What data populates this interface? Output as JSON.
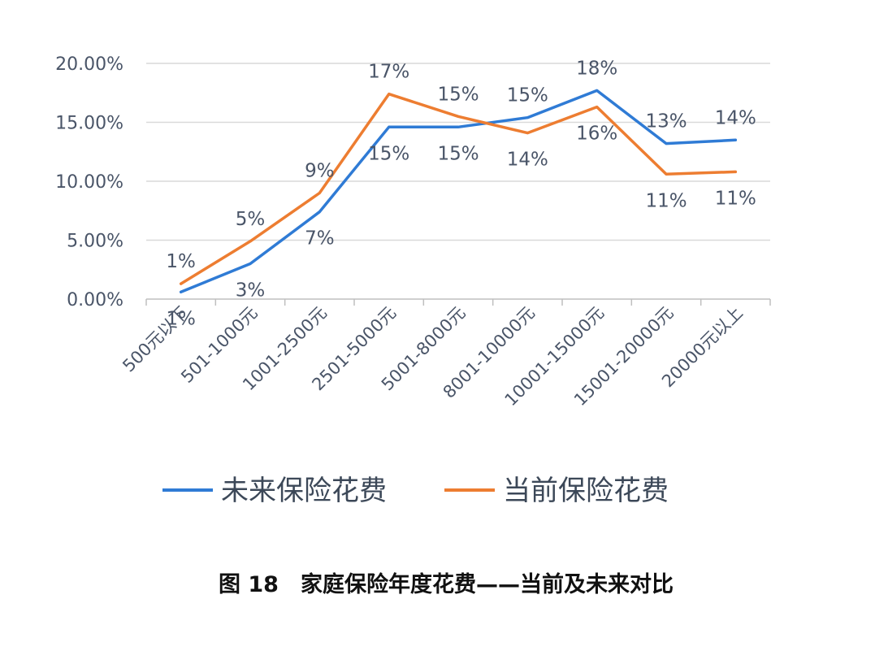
{
  "chart_data": {
    "type": "line",
    "title": "图 18　家庭保险年度花费——当前及未来对比",
    "categories": [
      "500元以下",
      "501-1000元",
      "1001-2500元",
      "2501-5000元",
      "5001-8000元",
      "8001-10000元",
      "10001-15000元",
      "15001-20000元",
      "20000元以上"
    ],
    "ylim": [
      0,
      20
    ],
    "yticks": [
      "0.00%",
      "5.00%",
      "10.00%",
      "15.00%",
      "20.00%"
    ],
    "grid": true,
    "legend_position": "bottom",
    "series": [
      {
        "name": "未来保险花费",
        "color": "#2F7BD5",
        "values": [
          0.6,
          3.0,
          7.4,
          14.6,
          14.6,
          15.4,
          17.7,
          13.2,
          13.5
        ],
        "labels": [
          "1%",
          "3%",
          "7%",
          "15%",
          "15%",
          "15%",
          "18%",
          "13%",
          "14%"
        ]
      },
      {
        "name": "当前保险花费",
        "color": "#ED7D31",
        "values": [
          1.3,
          4.9,
          9.0,
          17.4,
          15.5,
          14.1,
          16.3,
          10.6,
          10.8
        ],
        "labels": [
          "1%",
          "5%",
          "9%",
          "17%",
          "15%",
          "14%",
          "16%",
          "11%",
          "11%"
        ]
      }
    ]
  }
}
